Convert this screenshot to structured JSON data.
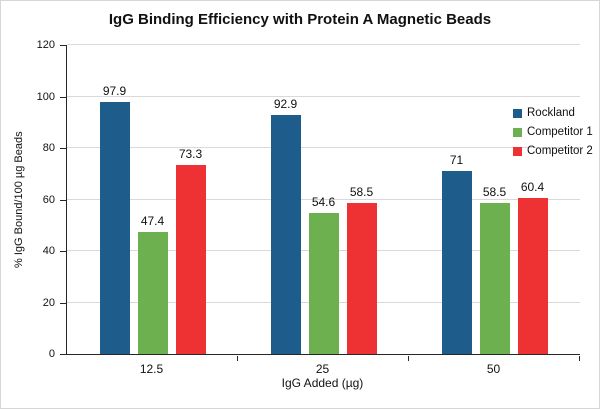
{
  "chart_data": {
    "type": "bar",
    "title": "IgG Binding Efficiency with Protein A Magnetic Beads",
    "xlabel": "IgG Added (µg)",
    "ylabel": "% IgG Bound/100 µg Beads",
    "categories": [
      "12.5",
      "25",
      "50"
    ],
    "series": [
      {
        "name": "Rockland",
        "color": "#1E5C8C",
        "values": [
          97.9,
          92.9,
          71
        ]
      },
      {
        "name": "Competitor 1",
        "color": "#6CB050",
        "values": [
          47.4,
          54.6,
          58.5
        ]
      },
      {
        "name": "Competitor 2",
        "color": "#EE3233",
        "values": [
          73.3,
          58.5,
          60.4
        ]
      }
    ],
    "ylim": [
      0,
      120
    ],
    "ytick_interval": 20,
    "grid": true,
    "grid_color": "#D9D9D9",
    "axis_color": "#262626",
    "legend_position": "right"
  }
}
